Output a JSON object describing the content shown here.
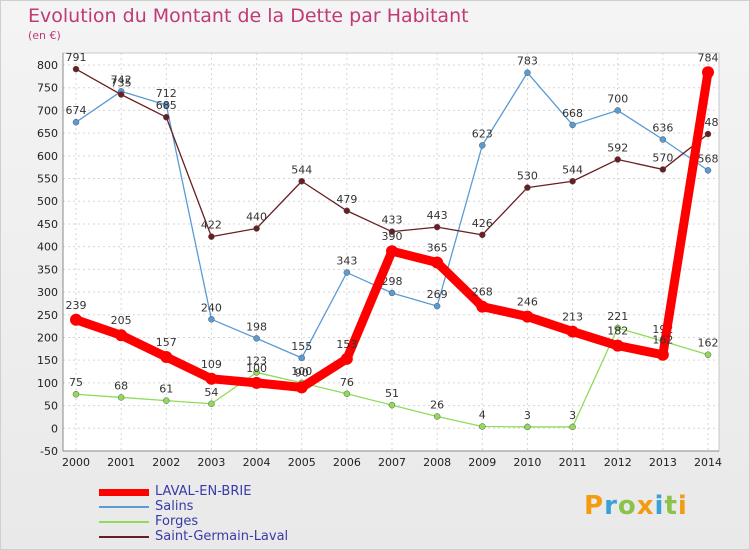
{
  "chart_data": {
    "type": "line",
    "title": "Evolution du Montant de la Dette par Habitant",
    "ylabel": "(en €)",
    "x": [
      "2000",
      "2001",
      "2002",
      "2003",
      "2004",
      "2005",
      "2006",
      "2007",
      "2008",
      "2009",
      "2010",
      "2011",
      "2012",
      "2013",
      "2014"
    ],
    "ylim": [
      -50,
      800
    ],
    "yticks": [
      -50,
      0,
      50,
      100,
      150,
      200,
      250,
      300,
      350,
      400,
      450,
      500,
      550,
      600,
      650,
      700,
      750,
      800
    ],
    "grid": true,
    "legend": "bottom-left",
    "series": [
      {
        "name": "LAVAL-EN-BRIE",
        "color": "#ff0000",
        "values": [
          239,
          205,
          157,
          109,
          100,
          90,
          153,
          390,
          365,
          268,
          246,
          213,
          182,
          162,
          784
        ]
      },
      {
        "name": "Salins",
        "color": "#5b9bd5",
        "values": [
          674,
          742,
          712,
          240,
          198,
          155,
          343,
          298,
          269,
          623,
          783,
          668,
          700,
          636,
          568
        ]
      },
      {
        "name": "Forges",
        "color": "#8fdc5a",
        "values": [
          75,
          68,
          61,
          54,
          123,
          100,
          76,
          51,
          26,
          4,
          3,
          3,
          221,
          192,
          162
        ]
      },
      {
        "name": "Saint-Germain-Laval",
        "color": "#6b1e22",
        "values": [
          791,
          735,
          685,
          422,
          440,
          544,
          479,
          433,
          443,
          426,
          530,
          544,
          592,
          570,
          648
        ]
      }
    ]
  },
  "logo": {
    "text": "Proxiti",
    "colors": [
      "#f39c12",
      "#3aa0d8",
      "#8bc34a",
      "#f39c12",
      "#3aa0d8",
      "#8bc34a",
      "#f39c12"
    ]
  }
}
